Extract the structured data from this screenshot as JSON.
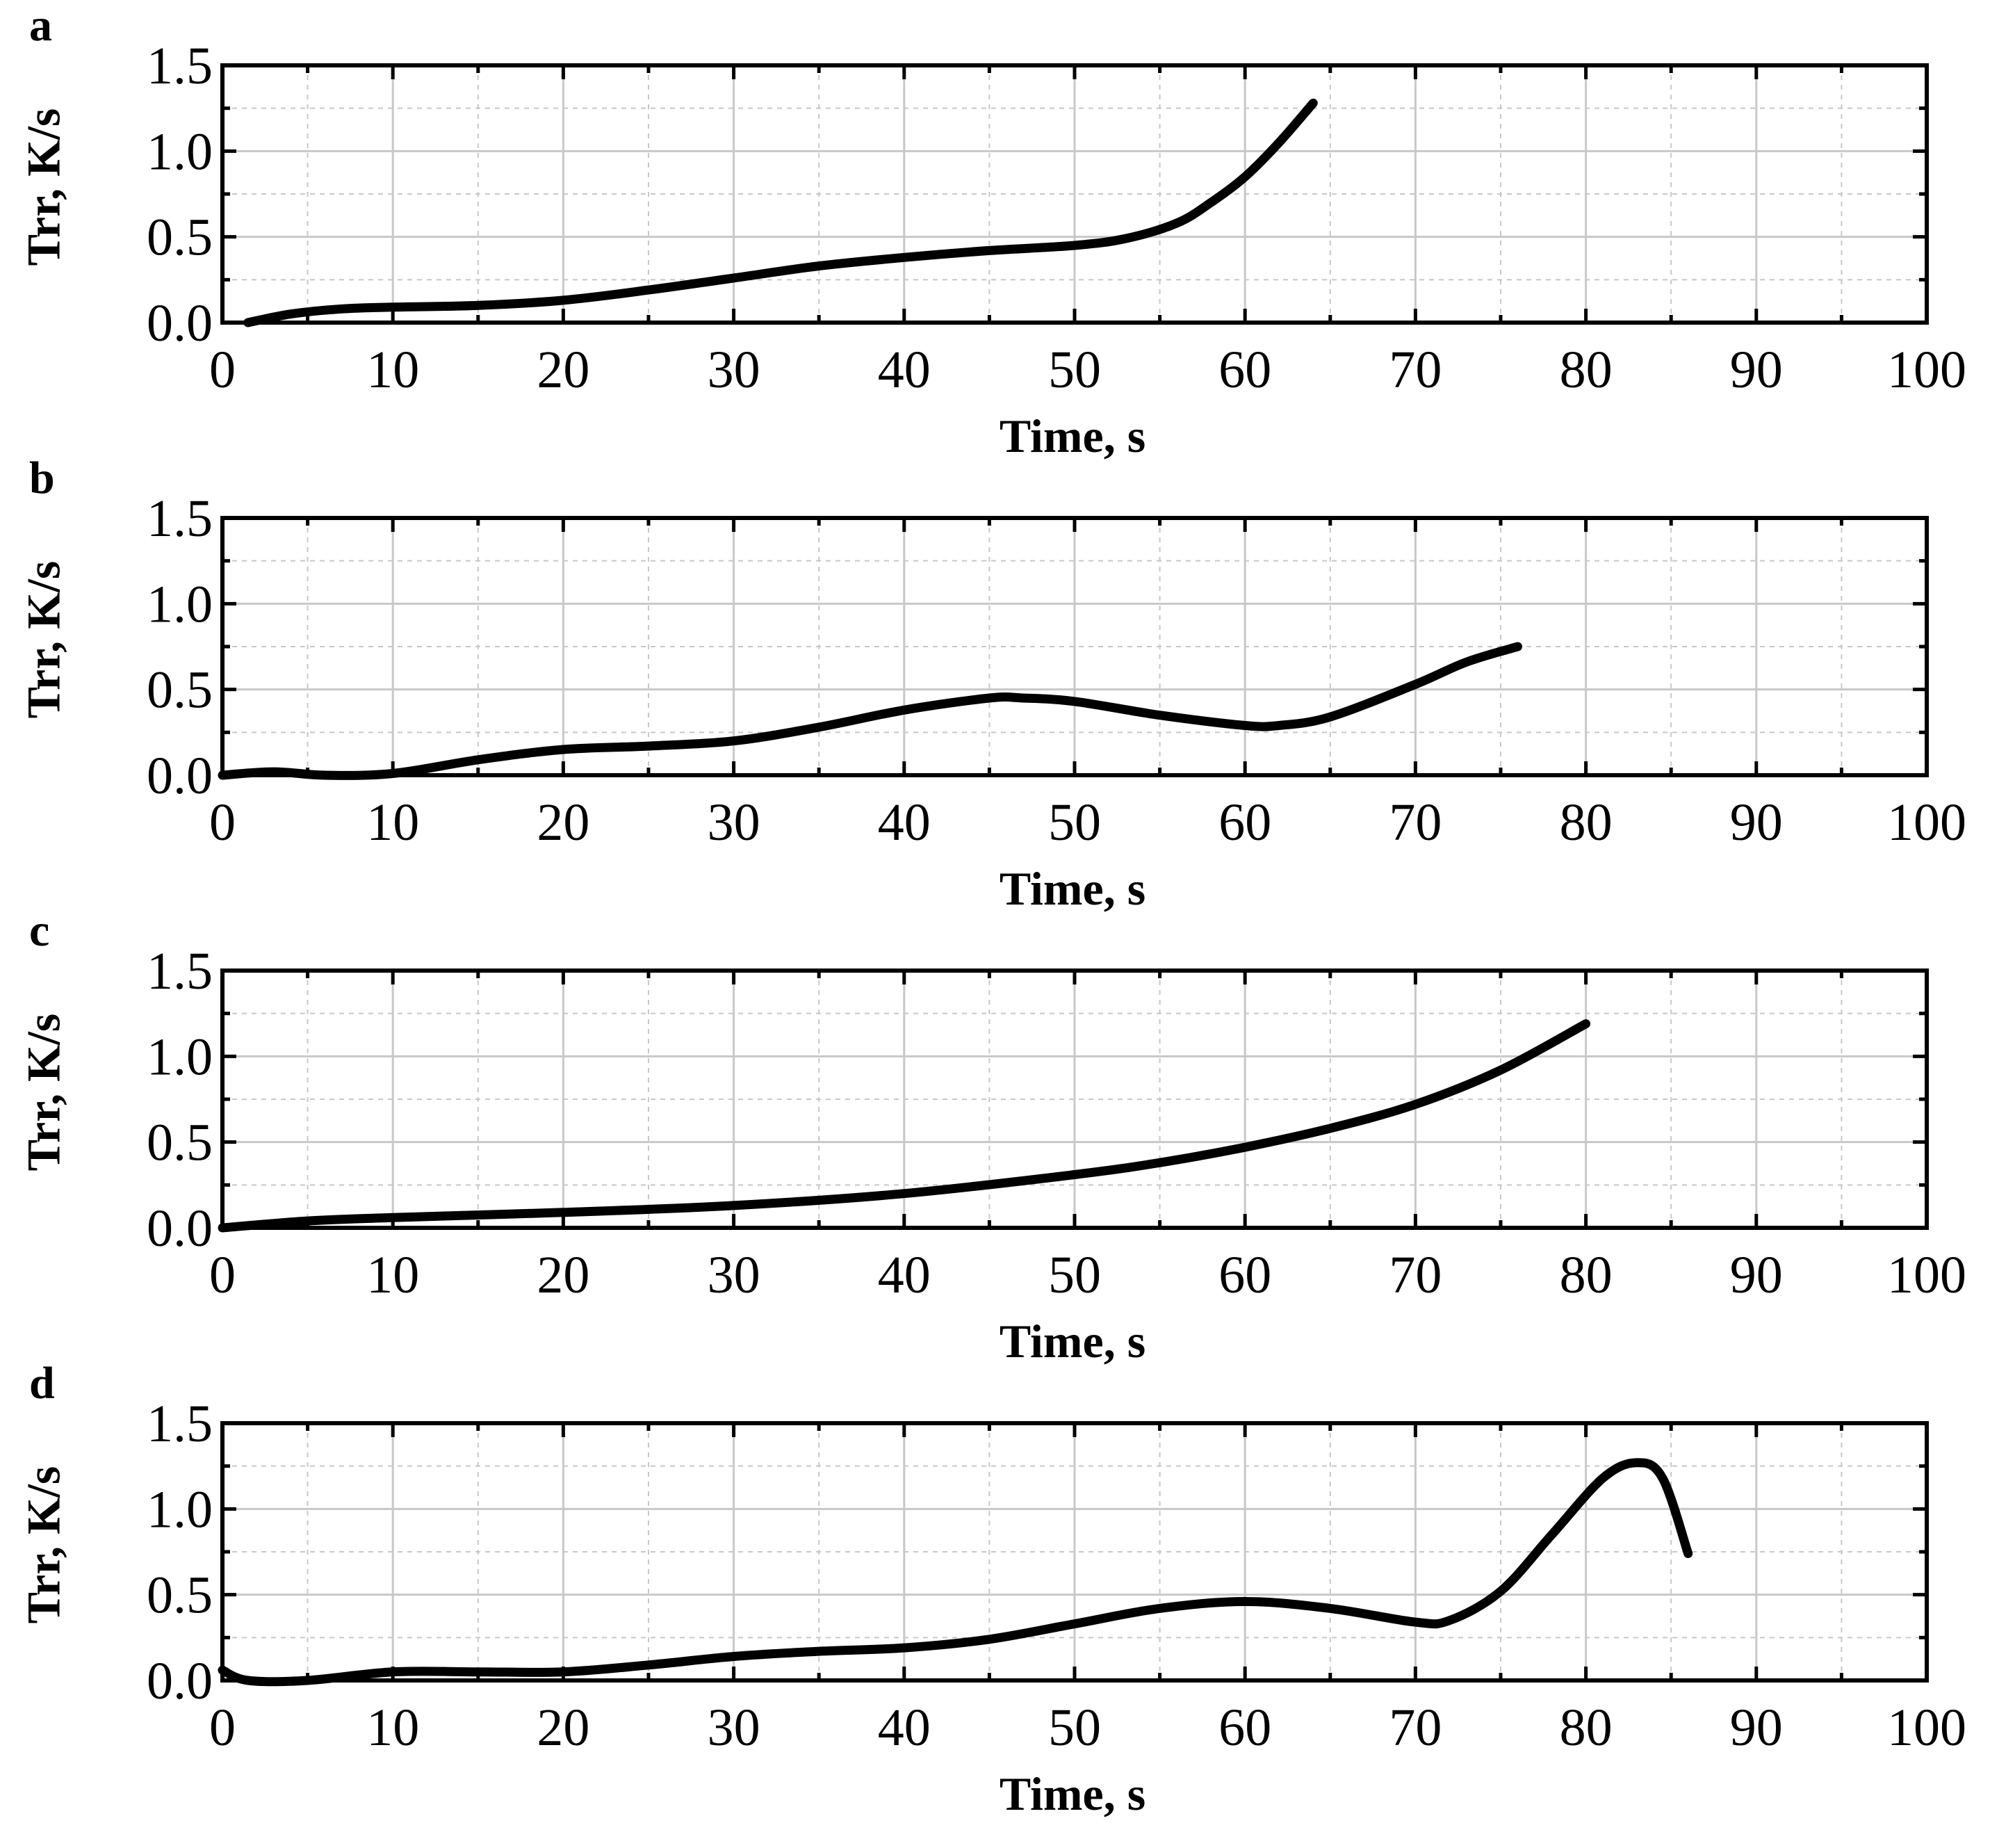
{
  "chart_data": [
    {
      "type": "line",
      "panel_label": "a",
      "xlabel": "Time, s",
      "ylabel": "Trr, K/s",
      "xlim": [
        0,
        100
      ],
      "ylim": [
        0,
        1.5
      ],
      "x_ticks": [
        "0",
        "10",
        "20",
        "30",
        "40",
        "50",
        "60",
        "70",
        "80",
        "90",
        "100"
      ],
      "y_ticks": [
        "0.0",
        "0.5",
        "1.0",
        "1.5"
      ],
      "grid": true,
      "series": [
        {
          "name": "Trr",
          "x": [
            1.5,
            4,
            7,
            10,
            15,
            20,
            25,
            30,
            35,
            40,
            45,
            50,
            53,
            56,
            58,
            60,
            62,
            64
          ],
          "y": [
            0.0,
            0.05,
            0.08,
            0.09,
            0.1,
            0.13,
            0.19,
            0.26,
            0.33,
            0.38,
            0.42,
            0.45,
            0.49,
            0.58,
            0.7,
            0.85,
            1.05,
            1.28
          ]
        }
      ]
    },
    {
      "type": "line",
      "panel_label": "b",
      "xlabel": "Time, s",
      "ylabel": "Trr, K/s",
      "xlim": [
        0,
        100
      ],
      "ylim": [
        0,
        1.5
      ],
      "x_ticks": [
        "0",
        "10",
        "20",
        "30",
        "40",
        "50",
        "60",
        "70",
        "80",
        "90",
        "100"
      ],
      "y_ticks": [
        "0.0",
        "0.5",
        "1.0",
        "1.5"
      ],
      "grid": true,
      "series": [
        {
          "name": "Trr",
          "x": [
            0,
            3,
            6,
            10,
            15,
            20,
            25,
            30,
            35,
            40,
            45,
            47,
            50,
            55,
            60,
            62,
            65,
            70,
            73,
            76
          ],
          "y": [
            0.0,
            0.02,
            0.0,
            0.01,
            0.09,
            0.15,
            0.17,
            0.2,
            0.28,
            0.38,
            0.45,
            0.45,
            0.43,
            0.35,
            0.29,
            0.29,
            0.34,
            0.53,
            0.66,
            0.75
          ]
        }
      ]
    },
    {
      "type": "line",
      "panel_label": "c",
      "xlabel": "Time, s",
      "ylabel": "Trr, K/s",
      "xlim": [
        0,
        100
      ],
      "ylim": [
        0,
        1.5
      ],
      "x_ticks": [
        "0",
        "10",
        "20",
        "30",
        "40",
        "50",
        "60",
        "70",
        "80",
        "90",
        "100"
      ],
      "y_ticks": [
        "0.0",
        "0.5",
        "1.0",
        "1.5"
      ],
      "grid": true,
      "series": [
        {
          "name": "Trr",
          "x": [
            0,
            5,
            10,
            20,
            30,
            40,
            50,
            55,
            60,
            65,
            70,
            75,
            80
          ],
          "y": [
            0.0,
            0.04,
            0.06,
            0.09,
            0.13,
            0.2,
            0.31,
            0.38,
            0.47,
            0.58,
            0.72,
            0.92,
            1.19
          ]
        }
      ]
    },
    {
      "type": "line",
      "panel_label": "d",
      "xlabel": "Time, s",
      "ylabel": "Trr, K/s",
      "xlim": [
        0,
        100
      ],
      "ylim": [
        0,
        1.5
      ],
      "x_ticks": [
        "0",
        "10",
        "20",
        "30",
        "40",
        "50",
        "60",
        "70",
        "80",
        "90",
        "100"
      ],
      "y_ticks": [
        "0.0",
        "0.5",
        "1.0",
        "1.5"
      ],
      "grid": true,
      "series": [
        {
          "name": "Trr",
          "x": [
            0,
            1.5,
            5,
            10,
            15,
            20,
            25,
            30,
            35,
            40,
            45,
            50,
            55,
            60,
            65,
            70,
            72,
            75,
            78,
            81,
            83,
            84.5,
            86
          ],
          "y": [
            0.06,
            0.0,
            0.0,
            0.05,
            0.05,
            0.05,
            0.09,
            0.14,
            0.17,
            0.19,
            0.24,
            0.33,
            0.42,
            0.46,
            0.42,
            0.34,
            0.35,
            0.52,
            0.85,
            1.18,
            1.27,
            1.18,
            0.74
          ]
        }
      ]
    }
  ]
}
